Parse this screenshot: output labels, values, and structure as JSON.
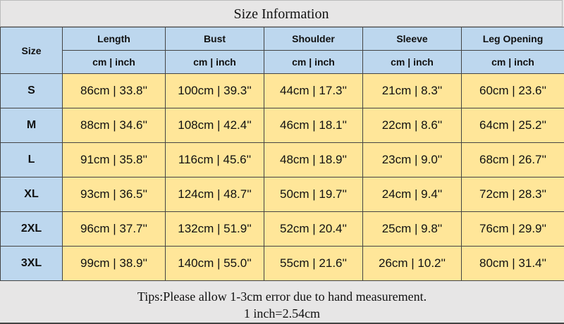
{
  "title": "Size Information",
  "header": {
    "size_label": "Size",
    "columns": [
      "Length",
      "Bust",
      "Shoulder",
      "Sleeve",
      "Leg Opening"
    ],
    "unit_label": "cm | inch"
  },
  "rows": [
    {
      "size": "S",
      "values": [
        "86cm | 33.8''",
        "100cm | 39.3''",
        "44cm | 17.3''",
        "21cm | 8.3''",
        "60cm | 23.6''"
      ]
    },
    {
      "size": "M",
      "values": [
        "88cm | 34.6''",
        "108cm | 42.4''",
        "46cm | 18.1''",
        "22cm | 8.6''",
        "64cm | 25.2''"
      ]
    },
    {
      "size": "L",
      "values": [
        "91cm | 35.8''",
        "116cm | 45.6''",
        "48cm | 18.9''",
        "23cm | 9.0''",
        "68cm | 26.7''"
      ]
    },
    {
      "size": "XL",
      "values": [
        "93cm | 36.5''",
        "124cm | 48.7''",
        "50cm | 19.7''",
        "24cm | 9.4''",
        "72cm | 28.3''"
      ]
    },
    {
      "size": "2XL",
      "values": [
        "96cm | 37.7''",
        "132cm | 51.9''",
        "52cm | 20.4''",
        "25cm | 9.8''",
        "76cm | 29.9''"
      ]
    },
    {
      "size": "3XL",
      "values": [
        "99cm | 38.9''",
        "140cm | 55.0''",
        "55cm | 21.6''",
        "26cm | 10.2''",
        "80cm | 31.4''"
      ]
    }
  ],
  "footer": {
    "tip": "Tips:Please allow 1-3cm error due to hand measurement.",
    "conversion": "1 inch=2.54cm"
  },
  "colors": {
    "header": "#bdd7ee",
    "cells": "#ffe699",
    "background": "#e7e6e6"
  }
}
